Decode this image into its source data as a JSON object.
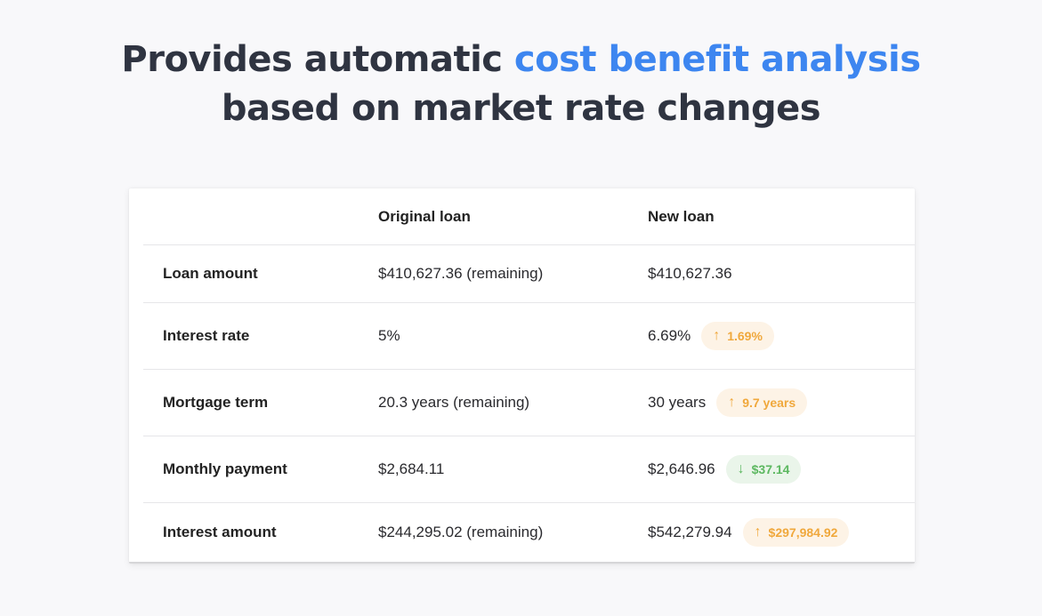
{
  "headline": {
    "prefix": "Provides automatic ",
    "highlight": "cost benefit analysis",
    "line2": "based on market rate changes"
  },
  "colors": {
    "accent": "#3d86f0",
    "increase": "#f0a83c",
    "decrease": "#5cb860",
    "text": "#2f3441"
  },
  "table": {
    "columns": [
      "",
      "Original loan",
      "New loan"
    ],
    "rows": [
      {
        "label": "Loan amount",
        "original": "$410,627.36 (remaining)",
        "new": "$410,627.36"
      },
      {
        "label": "Interest rate",
        "original": "5%",
        "new": "6.69%",
        "change": {
          "direction": "up",
          "icon": "arrow-up-icon",
          "arrow": "↑",
          "value": "1.69%"
        }
      },
      {
        "label": "Mortgage term",
        "original": "20.3 years (remaining)",
        "new": "30 years",
        "change": {
          "direction": "up",
          "icon": "arrow-up-icon",
          "arrow": "↑",
          "value": "9.7 years"
        }
      },
      {
        "label": "Monthly payment",
        "original": "$2,684.11",
        "new": "$2,646.96",
        "change": {
          "direction": "down",
          "icon": "arrow-down-icon",
          "arrow": "↓",
          "value": "$37.14"
        }
      },
      {
        "label": "Interest amount",
        "original": "$244,295.02 (remaining)",
        "new": "$542,279.94",
        "change": {
          "direction": "up",
          "icon": "arrow-up-icon",
          "arrow": "↑",
          "value": "$297,984.92"
        }
      }
    ]
  }
}
